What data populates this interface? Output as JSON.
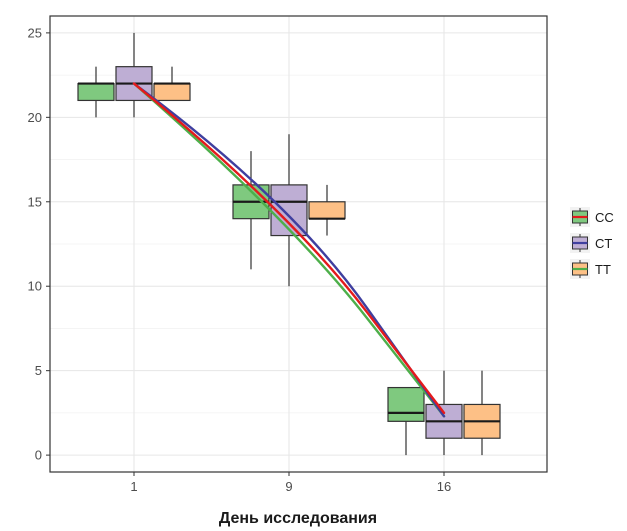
{
  "chart_data": {
    "type": "box",
    "title": "",
    "xlabel": "День исследования",
    "ylabel": "",
    "categories": [
      "1",
      "9",
      "16"
    ],
    "ylim": [
      -1,
      26
    ],
    "yticks": [
      "0",
      "5",
      "10",
      "15",
      "20",
      "25"
    ],
    "grid": true,
    "legend_position": "right",
    "series": [
      {
        "name": "CC",
        "fill": "#7fc97f",
        "line_color": "#e41a1c",
        "boxes": [
          {
            "min": 20,
            "q1": 21,
            "median": 22,
            "q3": 22,
            "max": 23
          },
          {
            "min": 11,
            "q1": 14,
            "median": 15,
            "q3": 16,
            "max": 18
          },
          {
            "min": 0,
            "q1": 2,
            "median": 2.5,
            "q3": 4,
            "max": 4
          }
        ],
        "trend": [
          22,
          14.5,
          2.5
        ]
      },
      {
        "name": "CT",
        "fill": "#beaed4",
        "line_color": "#3f3f9f",
        "boxes": [
          {
            "min": 20,
            "q1": 21,
            "median": 22,
            "q3": 23,
            "max": 25
          },
          {
            "min": 10,
            "q1": 13,
            "median": 15,
            "q3": 16,
            "max": 19
          },
          {
            "min": 0,
            "q1": 1,
            "median": 2,
            "q3": 3,
            "max": 5
          }
        ],
        "trend": [
          22,
          15.2,
          2.3
        ]
      },
      {
        "name": "TT",
        "fill": "#fdc086",
        "line_color": "#4daf4a",
        "boxes": [
          {
            "min": 21,
            "q1": 21,
            "median": 22,
            "q3": 22,
            "max": 23
          },
          {
            "min": 13,
            "q1": 14,
            "median": 14,
            "q3": 15,
            "max": 16
          },
          {
            "min": 0,
            "q1": 1,
            "median": 2,
            "q3": 3,
            "max": 5
          }
        ],
        "trend": [
          22,
          14.0,
          2.3
        ]
      }
    ]
  }
}
